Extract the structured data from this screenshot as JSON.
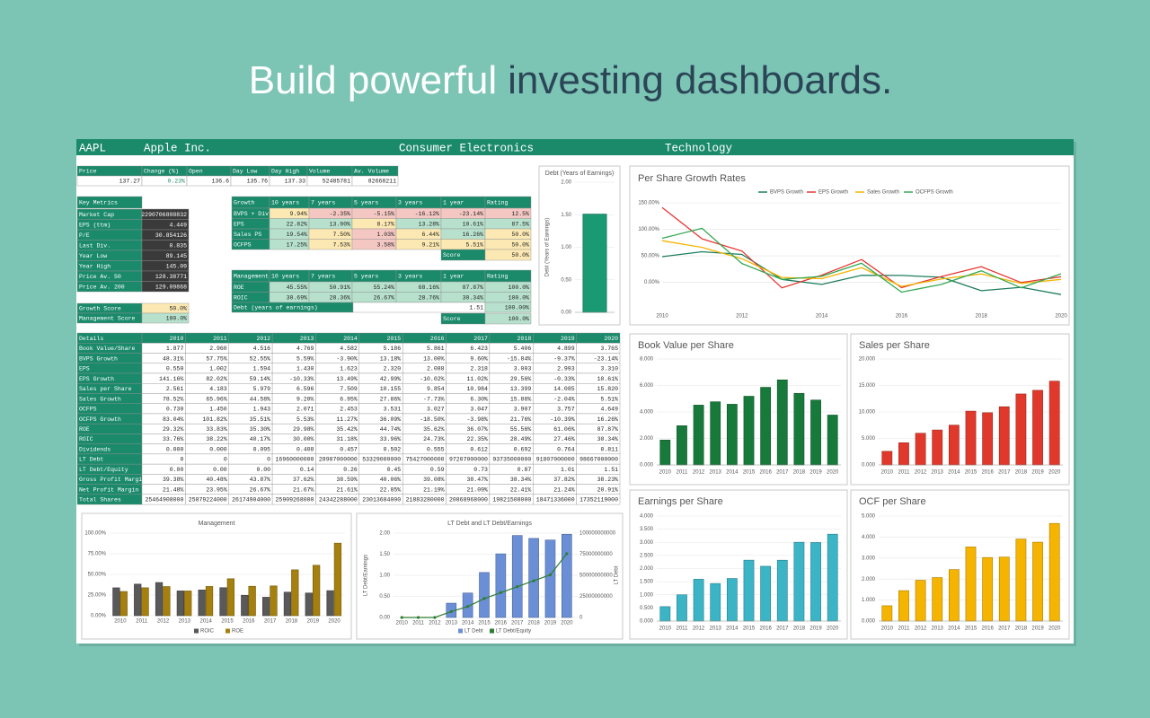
{
  "headline": {
    "lead": "Build powerful",
    "emphasis": "investing dashboards."
  },
  "header": {
    "ticker": "AAPL",
    "name": "Apple Inc.",
    "industry": "Consumer Electronics",
    "sector": "Technology"
  },
  "quote": {
    "columns": [
      "Price",
      "Change (%)",
      "Open",
      "Day Low",
      "Day High",
      "Volume",
      "Av. Volume"
    ],
    "values": [
      "137.27",
      "0.23%",
      "136.6",
      "135.76",
      "137.33",
      "52485781",
      "82668211"
    ]
  },
  "key_metrics": {
    "title": "Key Metrics",
    "rows": [
      [
        "Market Cap",
        "2290706808832"
      ],
      [
        "EPS (ttm)",
        "4.449"
      ],
      [
        "P/E",
        "30.854126"
      ],
      [
        "Last Div.",
        "0.835"
      ],
      [
        "Year Low",
        "89.145"
      ],
      [
        "Year High",
        "145.09"
      ],
      [
        "Price Av. 50",
        "128.38771"
      ],
      [
        "Price Av. 200",
        "129.09868"
      ]
    ]
  },
  "growth": {
    "columns": [
      "Growth",
      "10 years",
      "7 years",
      "5 years",
      "3 years",
      "1 year",
      "Rating"
    ],
    "rows": [
      [
        "BVPS + Div",
        "9.94%",
        "-2.35%",
        "-5.15%",
        "-16.12%",
        "-23.14%",
        "12.5%"
      ],
      [
        "EPS",
        "22.82%",
        "13.90%",
        "8.17%",
        "13.28%",
        "10.61%",
        "87.5%"
      ],
      [
        "Sales PS",
        "19.54%",
        "7.50%",
        "1.03%",
        "6.44%",
        "16.26%",
        "50.0%"
      ],
      [
        "OCFPS",
        "17.25%",
        "7.53%",
        "3.58%",
        "9.21%",
        "5.51%",
        "50.0%"
      ]
    ],
    "score": {
      "label": "Score",
      "value": "50.0%"
    }
  },
  "management": {
    "columns": [
      "Management",
      "10 years",
      "7 years",
      "5 years",
      "3 years",
      "1 year",
      "Rating"
    ],
    "rows": [
      [
        "ROE",
        "45.55%",
        "50.91%",
        "55.24%",
        "68.16%",
        "87.87%",
        "100.0%"
      ],
      [
        "ROIC",
        "30.69%",
        "28.36%",
        "26.67%",
        "28.76%",
        "30.34%",
        "100.0%"
      ]
    ],
    "debt": {
      "label": "Debt (years of earnings)",
      "value": "1.51",
      "rating": "100.00%"
    },
    "score": {
      "label": "Score",
      "value": "100.0%"
    }
  },
  "scores": [
    [
      "Growth Score",
      "50.0%"
    ],
    [
      "Management Score",
      "100.0%"
    ]
  ],
  "details": {
    "columns": [
      "Details",
      "2010",
      "2011",
      "2012",
      "2013",
      "2014",
      "2015",
      "2016",
      "2017",
      "2018",
      "2019",
      "2020"
    ],
    "rows": [
      [
        "Book Value/Share",
        "1.877",
        "2.960",
        "4.516",
        "4.769",
        "4.582",
        "5.186",
        "5.861",
        "6.423",
        "5.406",
        "4.899",
        "3.765"
      ],
      [
        "BVPS Growth",
        "48.31%",
        "57.75%",
        "52.55%",
        "5.59%",
        "-3.90%",
        "13.18%",
        "13.00%",
        "9.60%",
        "-15.84%",
        "-9.37%",
        "-23.14%"
      ],
      [
        "EPS",
        "0.550",
        "1.002",
        "1.594",
        "1.430",
        "1.623",
        "2.320",
        "2.088",
        "2.318",
        "3.003",
        "2.993",
        "3.310"
      ],
      [
        "EPS Growth",
        "141.16%",
        "82.02%",
        "59.14%",
        "-10.33%",
        "13.49%",
        "42.99%",
        "-10.02%",
        "11.02%",
        "29.56%",
        "-0.33%",
        "10.61%"
      ],
      [
        "Sales per Share",
        "2.561",
        "4.183",
        "5.979",
        "6.596",
        "7.509",
        "10.155",
        "9.854",
        "10.984",
        "13.399",
        "14.085",
        "15.820"
      ],
      [
        "Sales Growth",
        "78.52%",
        "65.96%",
        "44.58%",
        "9.20%",
        "6.95%",
        "27.86%",
        "-7.73%",
        "6.30%",
        "15.86%",
        "-2.04%",
        "5.51%"
      ],
      [
        "OCFPS",
        "0.730",
        "1.450",
        "1.943",
        "2.071",
        "2.453",
        "3.531",
        "3.027",
        "3.047",
        "3.907",
        "3.757",
        "4.649"
      ],
      [
        "OCFPS Growth",
        "83.04%",
        "101.82%",
        "35.51%",
        "5.53%",
        "11.27%",
        "36.09%",
        "-18.50%",
        "-3.98%",
        "21.76%",
        "-10.39%",
        "16.26%"
      ],
      [
        "ROE",
        "29.32%",
        "33.83%",
        "35.30%",
        "29.98%",
        "35.42%",
        "44.74%",
        "35.62%",
        "36.07%",
        "55.56%",
        "61.06%",
        "87.87%"
      ],
      [
        "ROIC",
        "33.76%",
        "38.22%",
        "40.17%",
        "30.00%",
        "31.18%",
        "33.96%",
        "24.73%",
        "22.35%",
        "28.49%",
        "27.46%",
        "30.34%"
      ],
      [
        "Dividends",
        "0.000",
        "0.000",
        "0.095",
        "0.408",
        "0.457",
        "0.502",
        "0.555",
        "0.612",
        "0.692",
        "0.764",
        "0.811"
      ],
      [
        "LT Debt",
        "0",
        "0",
        "0",
        "16960000000",
        "28987000000",
        "53329000000",
        "75427000000",
        "97207000000",
        "93735000000",
        "91807000000",
        "98667000000"
      ],
      [
        "LT Debt/Equity",
        "0.00",
        "0.00",
        "0.00",
        "0.14",
        "0.26",
        "0.45",
        "0.59",
        "0.73",
        "0.87",
        "1.01",
        "1.51"
      ],
      [
        "Gross Profit Margin",
        "39.38%",
        "40.48%",
        "43.87%",
        "37.62%",
        "38.59%",
        "40.06%",
        "39.08%",
        "38.47%",
        "38.34%",
        "37.82%",
        "38.23%"
      ],
      [
        "Net Profit Margin",
        "21.48%",
        "23.95%",
        "26.67%",
        "21.67%",
        "21.61%",
        "22.85%",
        "21.19%",
        "21.09%",
        "22.41%",
        "21.24%",
        "20.91%"
      ],
      [
        "Total Shares",
        "25464908000",
        "25879224000",
        "26174904000",
        "25909268000",
        "24342288000",
        "23013684000",
        "21883280000",
        "20868968000",
        "19821508000",
        "18471336000",
        "17352119000"
      ]
    ]
  },
  "chart_data": [
    {
      "type": "bar",
      "title": "Debt (Years of Earnings)",
      "y_label": "Debt (Years of Earnings)",
      "values": [
        1.51
      ],
      "color": "#1a9a72",
      "ylim": [
        0,
        2
      ],
      "yticks": [
        {
          "value": 0,
          "label": "0.00"
        },
        {
          "value": 0.5,
          "label": "0.50"
        },
        {
          "value": 1,
          "label": "1.00"
        },
        {
          "value": 1.5,
          "label": "1.50"
        },
        {
          "value": 2,
          "label": "2.00"
        }
      ]
    },
    {
      "type": "line",
      "title": "Per Share Growth Rates",
      "x": [
        2010,
        2011,
        2012,
        2013,
        2014,
        2015,
        2016,
        2017,
        2018,
        2019,
        2020
      ],
      "xlim": [
        2010,
        2020
      ],
      "xticks": [
        2010,
        2012,
        2014,
        2016,
        2018,
        2020
      ],
      "ylim": [
        -60,
        150
      ],
      "yticks": [
        {
          "value": 0,
          "label": "0.00%"
        },
        {
          "value": 50,
          "label": "50.00%"
        },
        {
          "value": 100,
          "label": "100.00%"
        },
        {
          "value": 150,
          "label": "150.00%"
        }
      ],
      "series": [
        {
          "name": "BVPS Growth",
          "color": "#1e7d5e",
          "values": [
            48.31,
            57.75,
            52.55,
            5.59,
            -3.9,
            13.18,
            13.0,
            9.6,
            -15.84,
            -9.37,
            -23.14
          ]
        },
        {
          "name": "EPS Growth",
          "color": "#e53935",
          "values": [
            141.16,
            82.02,
            59.14,
            -10.33,
            13.49,
            42.99,
            -10.02,
            11.02,
            29.56,
            -0.33,
            10.61
          ]
        },
        {
          "name": "Sales Growth",
          "color": "#f4b400",
          "values": [
            78.52,
            65.96,
            44.58,
            9.2,
            6.95,
            27.86,
            -7.73,
            6.3,
            15.86,
            -2.04,
            5.51
          ]
        },
        {
          "name": "OCFPS Growth",
          "color": "#34a853",
          "values": [
            83.04,
            101.82,
            35.51,
            5.53,
            11.27,
            36.09,
            -18.5,
            -3.98,
            21.76,
            -10.39,
            16.26
          ]
        }
      ]
    },
    {
      "type": "bar",
      "title": "Book Value per Share",
      "categories": [
        "2010",
        "2011",
        "2012",
        "2013",
        "2014",
        "2015",
        "2016",
        "2017",
        "2018",
        "2019",
        "2020"
      ],
      "values": [
        1.877,
        2.96,
        4.516,
        4.769,
        4.582,
        5.186,
        5.861,
        6.423,
        5.406,
        4.899,
        3.765
      ],
      "color": "#177a3a",
      "ylim": [
        0,
        8
      ],
      "yticks": [
        {
          "value": 0,
          "label": "0.000"
        },
        {
          "value": 2,
          "label": "2.000"
        },
        {
          "value": 4,
          "label": "4.000"
        },
        {
          "value": 6,
          "label": "6.000"
        },
        {
          "value": 8,
          "label": "8.000"
        }
      ]
    },
    {
      "type": "bar",
      "title": "Sales per Share",
      "categories": [
        "2010",
        "2011",
        "2012",
        "2013",
        "2014",
        "2015",
        "2016",
        "2017",
        "2018",
        "2019",
        "2020"
      ],
      "values": [
        2.561,
        4.183,
        5.979,
        6.596,
        7.509,
        10.155,
        9.854,
        10.984,
        13.399,
        14.085,
        15.82
      ],
      "color": "#e0392b",
      "ylim": [
        0,
        20
      ],
      "yticks": [
        {
          "value": 0,
          "label": "0.000"
        },
        {
          "value": 5,
          "label": "5.000"
        },
        {
          "value": 10,
          "label": "10.000"
        },
        {
          "value": 15,
          "label": "15.000"
        },
        {
          "value": 20,
          "label": "20.000"
        }
      ]
    },
    {
      "type": "bar",
      "title": "Earnings per Share",
      "categories": [
        "2010",
        "2011",
        "2012",
        "2013",
        "2014",
        "2015",
        "2016",
        "2017",
        "2018",
        "2019",
        "2020"
      ],
      "values": [
        0.55,
        1.002,
        1.594,
        1.43,
        1.623,
        2.32,
        2.088,
        2.318,
        3.003,
        2.993,
        3.31
      ],
      "color": "#3bb4c6",
      "ylim": [
        0,
        4
      ],
      "yticks": [
        {
          "value": 0,
          "label": "0.000"
        },
        {
          "value": 0.5,
          "label": "0.500"
        },
        {
          "value": 1,
          "label": "1.000"
        },
        {
          "value": 1.5,
          "label": "1.500"
        },
        {
          "value": 2,
          "label": "2.000"
        },
        {
          "value": 2.5,
          "label": "2.500"
        },
        {
          "value": 3,
          "label": "3.000"
        },
        {
          "value": 3.5,
          "label": "3.500"
        },
        {
          "value": 4,
          "label": "4.000"
        }
      ]
    },
    {
      "type": "bar",
      "title": "OCF per Share",
      "categories": [
        "2010",
        "2011",
        "2012",
        "2013",
        "2014",
        "2015",
        "2016",
        "2017",
        "2018",
        "2019",
        "2020"
      ],
      "values": [
        0.73,
        1.45,
        1.943,
        2.071,
        2.453,
        3.531,
        3.027,
        3.047,
        3.907,
        3.757,
        4.649
      ],
      "color": "#f5b400",
      "ylim": [
        0,
        5
      ],
      "yticks": [
        {
          "value": 0,
          "label": "0.000"
        },
        {
          "value": 1,
          "label": "1.000"
        },
        {
          "value": 2,
          "label": "2.000"
        },
        {
          "value": 3,
          "label": "3.000"
        },
        {
          "value": 4,
          "label": "4.000"
        },
        {
          "value": 5,
          "label": "5.000"
        }
      ]
    },
    {
      "type": "grouped-bar",
      "title": "Management",
      "categories": [
        "2010",
        "2011",
        "2012",
        "2013",
        "2014",
        "2015",
        "2016",
        "2017",
        "2018",
        "2019",
        "2020"
      ],
      "ylim": [
        0,
        100
      ],
      "yticks": [
        {
          "value": 0,
          "label": "0.00%"
        },
        {
          "value": 25,
          "label": "25.00%"
        },
        {
          "value": 50,
          "label": "50.00%"
        },
        {
          "value": 75,
          "label": "75.00%"
        },
        {
          "value": 100,
          "label": "100.00%"
        }
      ],
      "series": [
        {
          "name": "ROIC",
          "color": "#595959",
          "values": [
            33.76,
            38.22,
            40.17,
            30.0,
            31.18,
            33.96,
            24.73,
            22.35,
            28.49,
            27.46,
            30.34
          ]
        },
        {
          "name": "ROE",
          "color": "#a5800f",
          "values": [
            29.32,
            33.83,
            35.3,
            29.98,
            35.42,
            44.74,
            35.62,
            36.07,
            55.56,
            61.06,
            87.87
          ]
        }
      ]
    },
    {
      "type": "combo",
      "title": "LT Debt and LT Debt/Earnings",
      "y_label": "LT Debt/Earnings",
      "y2_label": "LT Debt",
      "categories": [
        "2010",
        "2011",
        "2012",
        "2013",
        "2014",
        "2015",
        "2016",
        "2017",
        "2018",
        "2019",
        "2020"
      ],
      "ylim": [
        0,
        2
      ],
      "yticks": [
        {
          "value": 0,
          "label": "0.00"
        },
        {
          "value": 0.5,
          "label": "0.50"
        },
        {
          "value": 1,
          "label": "1.00"
        },
        {
          "value": 1.5,
          "label": "1.50"
        },
        {
          "value": 2,
          "label": "2.00"
        }
      ],
      "y2lim": [
        0,
        100000000000
      ],
      "y2ticks": [
        0,
        25000000000,
        50000000000,
        75000000000,
        100000000000
      ],
      "series": [
        {
          "name": "LT Debt",
          "kind": "bar",
          "axis": "y2",
          "color": "#6b8fd6",
          "values": [
            0,
            0,
            0,
            16960000000,
            28987000000,
            53329000000,
            75427000000,
            97207000000,
            93735000000,
            91807000000,
            98667000000
          ]
        },
        {
          "name": "LT Debt/Equity",
          "kind": "line",
          "color": "#2e7d32",
          "values": [
            0,
            0,
            0,
            0.14,
            0.26,
            0.45,
            0.59,
            0.73,
            0.87,
            1.01,
            1.51
          ]
        }
      ]
    }
  ]
}
